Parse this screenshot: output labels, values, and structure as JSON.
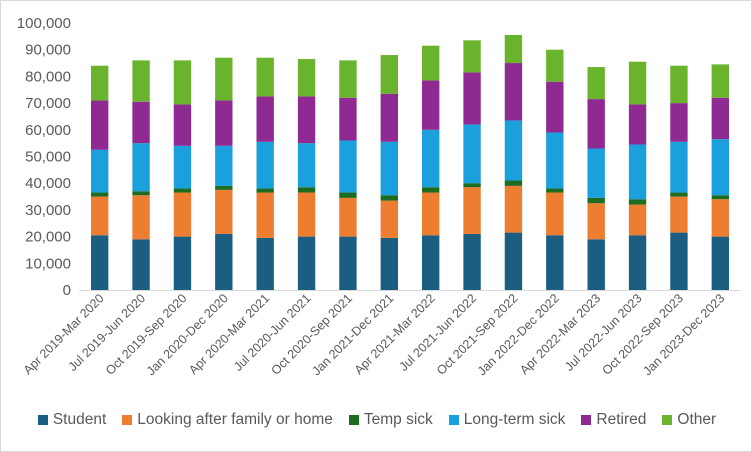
{
  "chart_data": {
    "type": "bar",
    "stacked": true,
    "categories": [
      "Apr 2019-Mar 2020",
      "Jul 2019-Jun 2020",
      "Oct 2019-Sep 2020",
      "Jan 2020-Dec 2020",
      "Apr 2020-Mar 2021",
      "Jul 2020-Jun 2021",
      "Oct 2020-Sep 2021",
      "Jan 2021-Dec 2021",
      "Apr 2021-Mar 2022",
      "Jul 2021-Jun 2022",
      "Oct 2021-Sep 2022",
      "Jan 2022-Dec 2022",
      "Apr 2022-Mar 2023",
      "Jul 2022-Jun 2023",
      "Oct 2022-Sep 2023",
      "Jan 2023-Dec 2023"
    ],
    "series": [
      {
        "name": "Student",
        "color": "#1b5e82",
        "values": [
          20500,
          19000,
          20000,
          21000,
          19500,
          20000,
          20000,
          19500,
          20500,
          21000,
          21500,
          20500,
          19000,
          20500,
          21500,
          20000
        ]
      },
      {
        "name": "Looking after family or home",
        "color": "#ed7d31",
        "values": [
          14500,
          16500,
          16500,
          16500,
          17000,
          16500,
          14500,
          14000,
          16000,
          17500,
          17500,
          16000,
          13500,
          11500,
          13500,
          14000
        ]
      },
      {
        "name": "Temp sick",
        "color": "#1e6b22",
        "values": [
          1500,
          1500,
          1500,
          1500,
          1500,
          2000,
          2000,
          2000,
          2000,
          1500,
          2000,
          1500,
          2000,
          2000,
          1500,
          1500
        ]
      },
      {
        "name": "Long-term sick",
        "color": "#1aa0dc",
        "values": [
          16000,
          18000,
          16000,
          15000,
          17500,
          16500,
          19500,
          20000,
          21500,
          22000,
          22500,
          21000,
          18500,
          20500,
          19000,
          21000
        ]
      },
      {
        "name": "Retired",
        "color": "#8e2a92",
        "values": [
          18500,
          15500,
          15500,
          17000,
          17000,
          17500,
          16000,
          18000,
          18500,
          19500,
          21500,
          19000,
          18500,
          15000,
          14500,
          15500
        ]
      },
      {
        "name": "Other",
        "color": "#6ab42d",
        "values": [
          13000,
          15500,
          16500,
          16000,
          14500,
          14000,
          14000,
          14500,
          13000,
          12000,
          10500,
          12000,
          12000,
          16000,
          14000,
          12500
        ]
      }
    ],
    "ylim": [
      0,
      100000
    ],
    "yticks": [
      "0",
      "10,000",
      "20,000",
      "30,000",
      "40,000",
      "50,000",
      "60,000",
      "70,000",
      "80,000",
      "90,000",
      "100,000"
    ],
    "title": "",
    "xlabel": "",
    "ylabel": "",
    "grid": false,
    "legend_position": "bottom"
  }
}
